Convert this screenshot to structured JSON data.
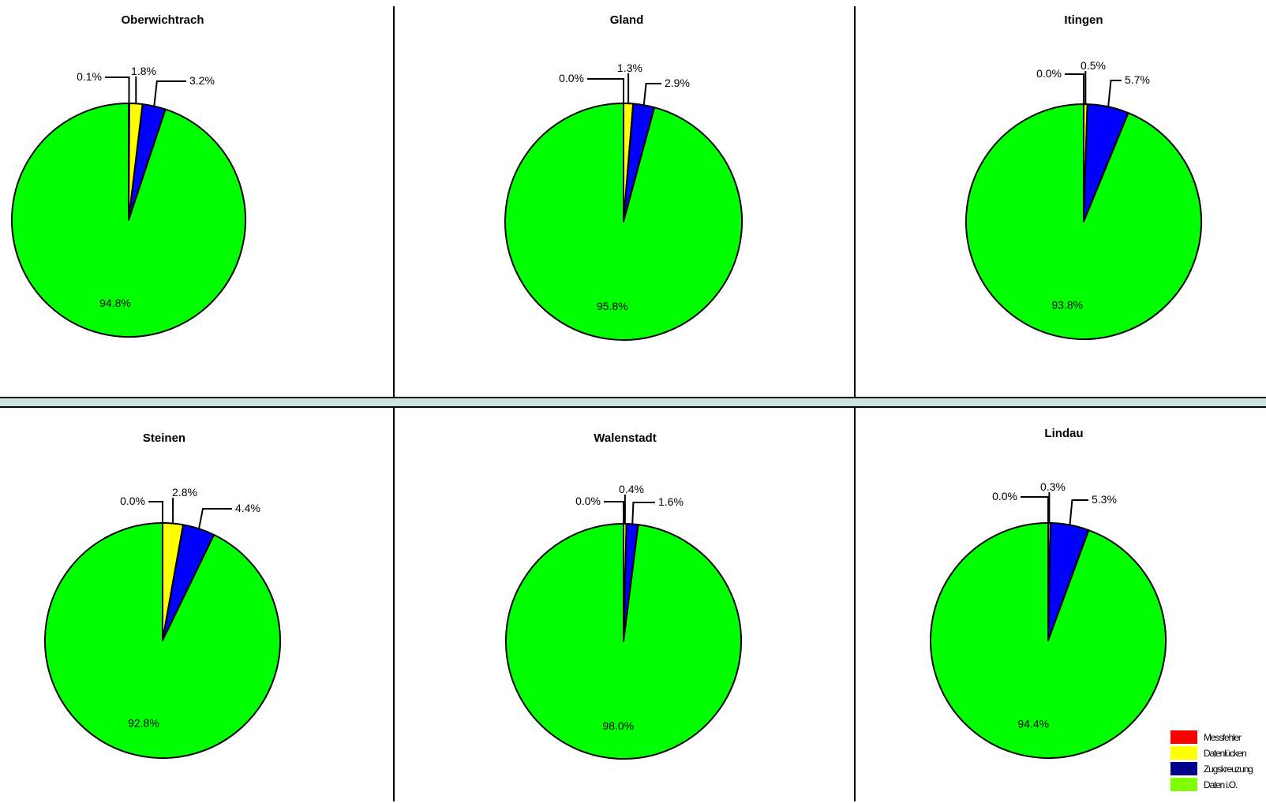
{
  "colors": {
    "messfehler": "#ff0000",
    "datenluecken": "#ffff00",
    "zugskreuzung": "#0000ff",
    "daten_iq": "#00ff00",
    "divider_band": "#cde3e3"
  },
  "legend": [
    {
      "label": "Messfehler",
      "color": "#ff0000"
    },
    {
      "label": "Datenlücken",
      "color": "#ffff00"
    },
    {
      "label": "Zugskreuzung",
      "color": "#00008b"
    },
    {
      "label": "Daten i.O.",
      "color": "#7fff00"
    }
  ],
  "chart_data": [
    {
      "type": "pie",
      "title": "Oberwichtrach",
      "slices": [
        {
          "category": "Messfehler",
          "value": 0.1,
          "label": "0.1%"
        },
        {
          "category": "Datenlücken",
          "value": 1.8,
          "label": "1.8%"
        },
        {
          "category": "Zugskreuzung",
          "value": 3.2,
          "label": "3.2%"
        },
        {
          "category": "Daten i.O.",
          "value": 94.8,
          "label": "94.8%"
        }
      ]
    },
    {
      "type": "pie",
      "title": "Gland",
      "slices": [
        {
          "category": "Messfehler",
          "value": 0.0,
          "label": "0.0%"
        },
        {
          "category": "Datenlücken",
          "value": 1.3,
          "label": "1.3%"
        },
        {
          "category": "Zugskreuzung",
          "value": 2.9,
          "label": "2.9%"
        },
        {
          "category": "Daten i.O.",
          "value": 95.8,
          "label": "95.8%"
        }
      ]
    },
    {
      "type": "pie",
      "title": "Itingen",
      "slices": [
        {
          "category": "Messfehler",
          "value": 0.0,
          "label": "0.0%"
        },
        {
          "category": "Datenlücken",
          "value": 0.5,
          "label": "0.5%"
        },
        {
          "category": "Zugskreuzung",
          "value": 5.7,
          "label": "5.7%"
        },
        {
          "category": "Daten i.O.",
          "value": 93.8,
          "label": "93.8%"
        }
      ]
    },
    {
      "type": "pie",
      "title": "Steinen",
      "slices": [
        {
          "category": "Messfehler",
          "value": 0.0,
          "label": "0.0%"
        },
        {
          "category": "Datenlücken",
          "value": 2.8,
          "label": "2.8%"
        },
        {
          "category": "Zugskreuzung",
          "value": 4.4,
          "label": "4.4%"
        },
        {
          "category": "Daten i.O.",
          "value": 92.8,
          "label": "92.8%"
        }
      ]
    },
    {
      "type": "pie",
      "title": "Walenstadt",
      "slices": [
        {
          "category": "Messfehler",
          "value": 0.0,
          "label": "0.0%"
        },
        {
          "category": "Datenlücken",
          "value": 0.4,
          "label": "0.4%"
        },
        {
          "category": "Zugskreuzung",
          "value": 1.6,
          "label": "1.6%"
        },
        {
          "category": "Daten i.O.",
          "value": 98.0,
          "label": "98.0%"
        }
      ]
    },
    {
      "type": "pie",
      "title": "Lindau",
      "slices": [
        {
          "category": "Messfehler",
          "value": 0.0,
          "label": "0.0%"
        },
        {
          "category": "Datenlücken",
          "value": 0.3,
          "label": "0.3%"
        },
        {
          "category": "Zugskreuzung",
          "value": 5.3,
          "label": "5.3%"
        },
        {
          "category": "Daten i.O.",
          "value": 94.4,
          "label": "94.4%"
        }
      ]
    }
  ]
}
